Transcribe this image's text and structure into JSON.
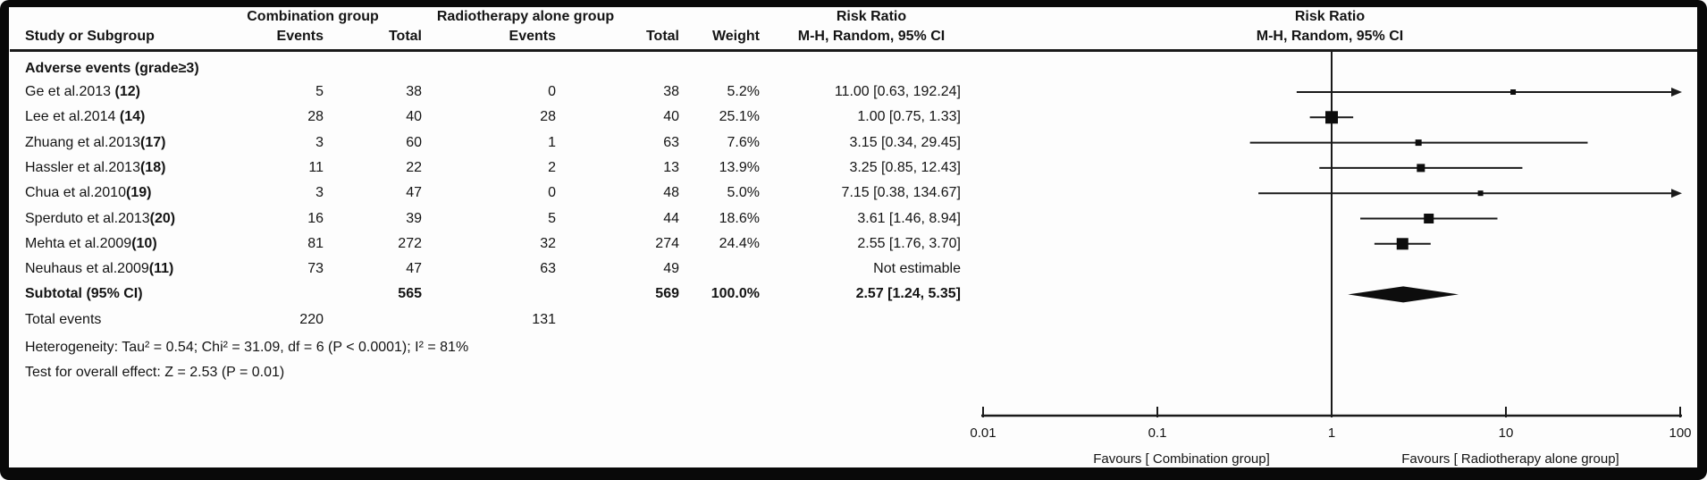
{
  "header": {
    "group1": "Combination group",
    "group2": "Radiotherapy alone group",
    "risk_ratio": "Risk Ratio",
    "method": "M-H, Random, 95% CI",
    "col_study": "Study or Subgroup",
    "col_events": "Events",
    "col_total": "Total",
    "col_weight": "Weight"
  },
  "chart_data": {
    "type": "forest",
    "effect_measure": "Risk Ratio",
    "method": "M-H, Random, 95% CI",
    "x_scale": "log",
    "x_ticks": [
      0.01,
      0.1,
      1,
      10,
      100
    ],
    "x_tick_labels": [
      "0.01",
      "0.1",
      "1",
      "10",
      "100"
    ],
    "x_range": [
      0.01,
      100
    ],
    "null_line": 1,
    "section": "Adverse events (grade≥3)",
    "favours_left": "Favours [ Combination group]",
    "favours_right": "Favours [ Radiotherapy alone group]",
    "studies": [
      {
        "label": "Ge et al.2013 ",
        "ref": "(12)",
        "events_1": "5",
        "total_1": "38",
        "events_2": "0",
        "total_2": "38",
        "weight": "5.2%",
        "rr": "11.00 [0.63, 192.24]",
        "est": 11.0,
        "ci_low": 0.63,
        "ci_high": 192.24
      },
      {
        "label": "Lee et al.2014 ",
        "ref": "(14)",
        "events_1": "28",
        "total_1": "40",
        "events_2": "28",
        "total_2": "40",
        "weight": "25.1%",
        "rr": "1.00 [0.75, 1.33]",
        "est": 1.0,
        "ci_low": 0.75,
        "ci_high": 1.33
      },
      {
        "label": "Zhuang et al.2013",
        "ref": "(17)",
        "events_1": "3",
        "total_1": "60",
        "events_2": "1",
        "total_2": "63",
        "weight": "7.6%",
        "rr": "3.15 [0.34, 29.45]",
        "est": 3.15,
        "ci_low": 0.34,
        "ci_high": 29.45
      },
      {
        "label": "Hassler et al.2013",
        "ref": "(18)",
        "events_1": "11",
        "total_1": "22",
        "events_2": "2",
        "total_2": "13",
        "weight": "13.9%",
        "rr": "3.25 [0.85, 12.43]",
        "est": 3.25,
        "ci_low": 0.85,
        "ci_high": 12.43
      },
      {
        "label": "Chua et al.2010",
        "ref": "(19)",
        "events_1": "3",
        "total_1": "47",
        "events_2": "0",
        "total_2": "48",
        "weight": "5.0%",
        "rr": "7.15 [0.38, 134.67]",
        "est": 7.15,
        "ci_low": 0.38,
        "ci_high": 134.67
      },
      {
        "label": "Sperduto et al.2013",
        "ref": "(20)",
        "events_1": "16",
        "total_1": "39",
        "events_2": "5",
        "total_2": "44",
        "weight": "18.6%",
        "rr": "3.61 [1.46, 8.94]",
        "est": 3.61,
        "ci_low": 1.46,
        "ci_high": 8.94
      },
      {
        "label": "Mehta et al.2009",
        "ref": "(10)",
        "events_1": "81",
        "total_1": "272",
        "events_2": "32",
        "total_2": "274",
        "weight": "24.4%",
        "rr": "2.55 [1.76, 3.70]",
        "est": 2.55,
        "ci_low": 1.76,
        "ci_high": 3.7
      },
      {
        "label": "Neuhaus et al.2009",
        "ref": "(11)",
        "events_1": "73",
        "total_1": "47",
        "events_2": "63",
        "total_2": "49",
        "weight": "",
        "rr": "Not estimable",
        "est": null,
        "ci_low": null,
        "ci_high": null
      }
    ],
    "subtotal": {
      "label": "Subtotal (95% CI)",
      "total_1": "565",
      "total_2": "569",
      "weight": "100.0%",
      "rr": "2.57 [1.24, 5.35]",
      "est": 2.57,
      "ci_low": 1.24,
      "ci_high": 5.35
    },
    "total_events": {
      "label": "Total events",
      "events_1": "220",
      "events_2": "131"
    },
    "heterogeneity": "Heterogeneity: Tau² = 0.54; Chi² = 31.09, df = 6 (P < 0.0001); I² = 81%",
    "overall_effect": "Test for overall effect: Z = 2.53 (P = 0.01)"
  }
}
